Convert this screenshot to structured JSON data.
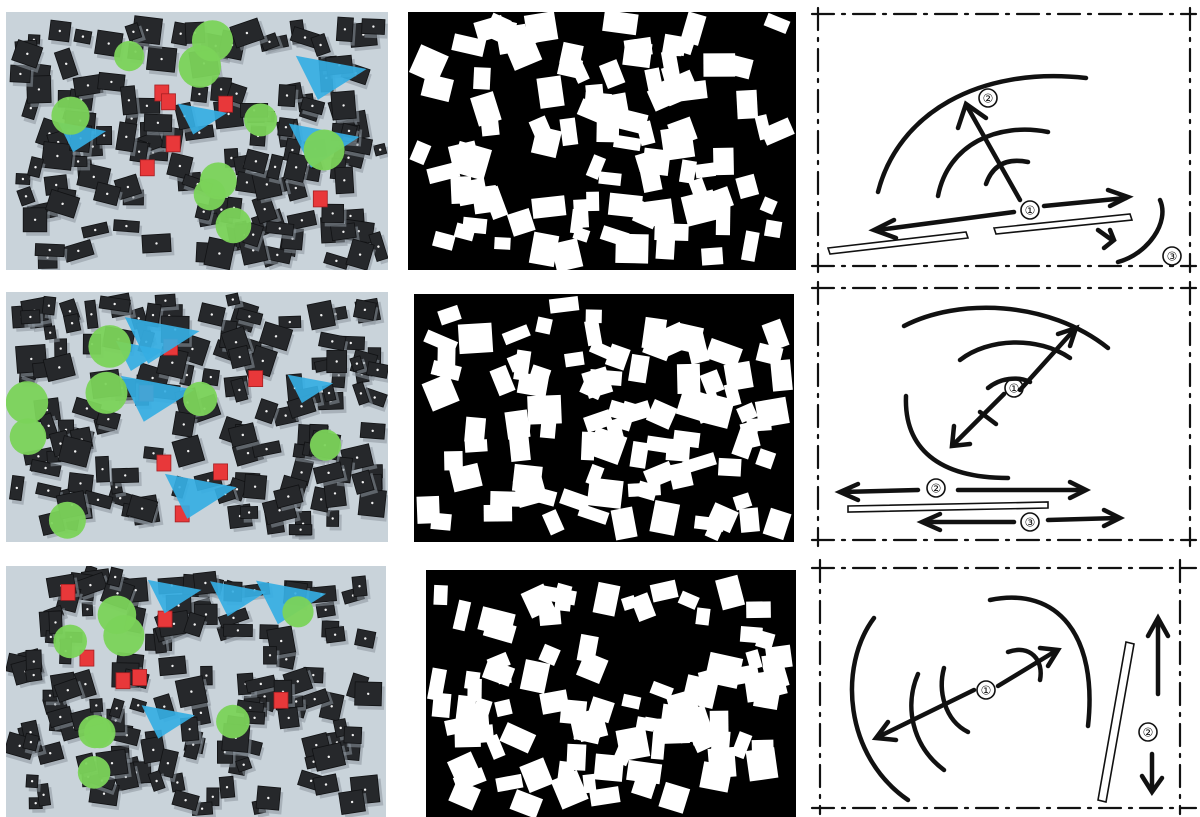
{
  "colors": {
    "model_ground": "#c9d3da",
    "block": "#26282b",
    "block_edge": "#111214",
    "green_marker": "#7bd35a",
    "blue_marker": "#35aee3",
    "red_marker": "#e8383a",
    "figure_ground_solid": "#000000",
    "figure_ground_void": "#ffffff",
    "sketch_ink": "#111111"
  },
  "rows": [
    {
      "id": "row-1",
      "model": {
        "seed": 11,
        "greens": 9,
        "blues": 4,
        "reds": 6
      },
      "figure_ground": {
        "seed": 21
      },
      "sketch": {
        "labels": [
          "②",
          "①",
          "③"
        ]
      }
    },
    {
      "id": "row-2",
      "model": {
        "seed": 37,
        "greens": 7,
        "blues": 5,
        "reds": 6
      },
      "figure_ground": {
        "seed": 43
      },
      "sketch": {
        "labels": [
          "①",
          "②",
          "③"
        ]
      }
    },
    {
      "id": "row-3",
      "model": {
        "seed": 59,
        "greens": 8,
        "blues": 4,
        "reds": 6
      },
      "figure_ground": {
        "seed": 71
      },
      "sketch": {
        "labels": [
          "①",
          "②"
        ]
      }
    }
  ]
}
